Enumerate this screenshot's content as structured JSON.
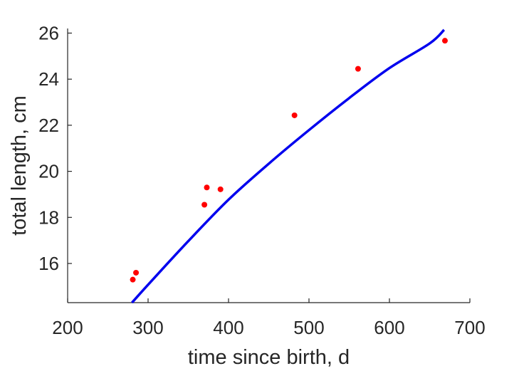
{
  "chart_data": {
    "type": "scatter",
    "title": "",
    "xlabel": "time since birth, d",
    "ylabel": "total length, cm",
    "xlim": [
      200,
      700
    ],
    "ylim": [
      14.3,
      26.2
    ],
    "xticks": [
      200,
      300,
      400,
      500,
      600,
      700
    ],
    "yticks": [
      16,
      18,
      20,
      22,
      24,
      26
    ],
    "grid": false,
    "legend": "none",
    "series": [
      {
        "kind": "points",
        "color": "#ff0000",
        "x": [
          281,
          285,
          370,
          373,
          390,
          482,
          561,
          669
        ],
        "y": [
          15.3,
          15.6,
          18.55,
          19.3,
          19.22,
          22.43,
          24.45,
          25.67
        ]
      },
      {
        "kind": "line",
        "color": "#0000ee",
        "x": [
          280,
          300,
          350,
          400,
          450,
          500,
          550,
          600,
          650,
          668
        ],
        "y": [
          14.3,
          15.08,
          16.97,
          18.77,
          20.33,
          21.79,
          23.18,
          24.48,
          25.55,
          26.14
        ]
      }
    ]
  }
}
